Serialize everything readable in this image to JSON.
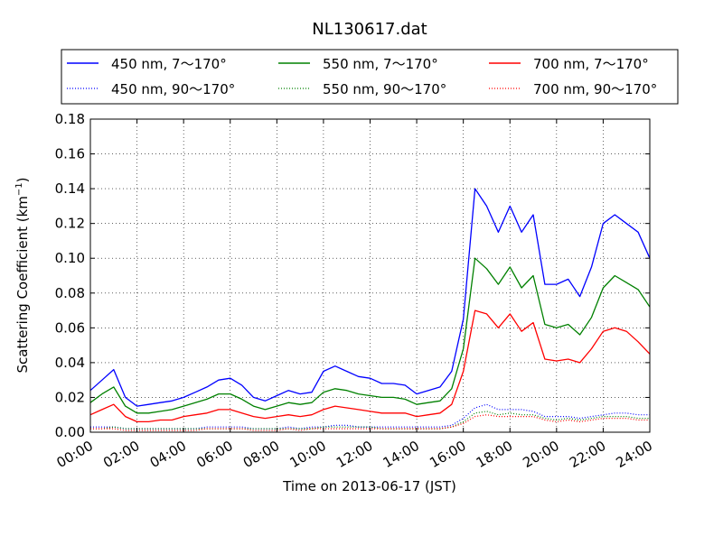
{
  "chart_data": {
    "type": "line",
    "title": "NL130617.dat",
    "xlabel": "Time on 2013-06-17 (JST)",
    "ylabel": "Scattering Coefficient (km",
    "ylabel_sup": "−1",
    "ylabel_tail": ")",
    "xlim": [
      0,
      24
    ],
    "ylim": [
      0,
      0.18
    ],
    "grid": true,
    "legend_position": "top",
    "x_ticks": [
      {
        "value": 0,
        "label": "00:00"
      },
      {
        "value": 2,
        "label": "02:00"
      },
      {
        "value": 4,
        "label": "04:00"
      },
      {
        "value": 6,
        "label": "06:00"
      },
      {
        "value": 8,
        "label": "08:00"
      },
      {
        "value": 10,
        "label": "10:00"
      },
      {
        "value": 12,
        "label": "12:00"
      },
      {
        "value": 14,
        "label": "14:00"
      },
      {
        "value": 16,
        "label": "16:00"
      },
      {
        "value": 18,
        "label": "18:00"
      },
      {
        "value": 20,
        "label": "20:00"
      },
      {
        "value": 22,
        "label": "22:00"
      },
      {
        "value": 24,
        "label": "24:00"
      }
    ],
    "y_ticks": [
      {
        "value": 0,
        "label": "0.00"
      },
      {
        "value": 0.02,
        "label": "0.02"
      },
      {
        "value": 0.04,
        "label": "0.04"
      },
      {
        "value": 0.06,
        "label": "0.06"
      },
      {
        "value": 0.08,
        "label": "0.08"
      },
      {
        "value": 0.1,
        "label": "0.10"
      },
      {
        "value": 0.12,
        "label": "0.12"
      },
      {
        "value": 0.14,
        "label": "0.14"
      },
      {
        "value": 0.16,
        "label": "0.16"
      },
      {
        "value": 0.18,
        "label": "0.18"
      }
    ],
    "x": [
      0,
      0.5,
      1,
      1.5,
      2,
      2.5,
      3,
      3.5,
      4,
      4.5,
      5,
      5.5,
      6,
      6.5,
      7,
      7.5,
      8,
      8.5,
      9,
      9.5,
      10,
      10.5,
      11,
      11.5,
      12,
      12.5,
      13,
      13.5,
      14,
      14.5,
      15,
      15.5,
      16,
      16.5,
      17,
      17.5,
      18,
      18.5,
      19,
      19.5,
      20,
      20.5,
      21,
      21.5,
      22,
      22.5,
      23,
      23.5,
      24
    ],
    "series": [
      {
        "name": "450 nm, 7～170°",
        "color": "#0000ff",
        "style": "solid",
        "values": [
          0.024,
          0.03,
          0.036,
          0.02,
          0.015,
          0.016,
          0.017,
          0.018,
          0.02,
          0.023,
          0.026,
          0.03,
          0.031,
          0.027,
          0.02,
          0.018,
          0.021,
          0.024,
          0.022,
          0.023,
          0.035,
          0.038,
          0.035,
          0.032,
          0.031,
          0.028,
          0.028,
          0.027,
          0.022,
          0.024,
          0.026,
          0.035,
          0.065,
          0.14,
          0.13,
          0.115,
          0.13,
          0.115,
          0.125,
          0.085,
          0.085,
          0.088,
          0.078,
          0.095,
          0.12,
          0.125,
          0.12,
          0.115,
          0.1
        ]
      },
      {
        "name": "450 nm, 90～170°",
        "color": "#0000ff",
        "style": "dotted",
        "values": [
          0.003,
          0.003,
          0.003,
          0.002,
          0.002,
          0.002,
          0.002,
          0.002,
          0.002,
          0.002,
          0.003,
          0.003,
          0.003,
          0.003,
          0.002,
          0.002,
          0.002,
          0.003,
          0.002,
          0.003,
          0.003,
          0.004,
          0.004,
          0.003,
          0.003,
          0.003,
          0.003,
          0.003,
          0.003,
          0.003,
          0.003,
          0.004,
          0.008,
          0.014,
          0.016,
          0.013,
          0.013,
          0.013,
          0.012,
          0.009,
          0.009,
          0.009,
          0.008,
          0.009,
          0.01,
          0.011,
          0.011,
          0.01,
          0.01
        ]
      },
      {
        "name": "550 nm, 7～170°",
        "color": "#008000",
        "style": "solid",
        "values": [
          0.017,
          0.022,
          0.026,
          0.015,
          0.011,
          0.011,
          0.012,
          0.013,
          0.015,
          0.017,
          0.019,
          0.022,
          0.022,
          0.019,
          0.015,
          0.013,
          0.015,
          0.017,
          0.016,
          0.017,
          0.023,
          0.025,
          0.024,
          0.022,
          0.021,
          0.02,
          0.02,
          0.019,
          0.016,
          0.017,
          0.018,
          0.025,
          0.048,
          0.1,
          0.094,
          0.085,
          0.095,
          0.083,
          0.09,
          0.062,
          0.06,
          0.062,
          0.056,
          0.066,
          0.083,
          0.09,
          0.086,
          0.082,
          0.072
        ]
      },
      {
        "name": "550 nm, 90～170°",
        "color": "#008000",
        "style": "dotted",
        "values": [
          0.002,
          0.002,
          0.003,
          0.002,
          0.002,
          0.002,
          0.002,
          0.002,
          0.002,
          0.002,
          0.002,
          0.002,
          0.002,
          0.002,
          0.002,
          0.002,
          0.002,
          0.002,
          0.002,
          0.002,
          0.003,
          0.003,
          0.003,
          0.003,
          0.003,
          0.002,
          0.002,
          0.002,
          0.002,
          0.002,
          0.002,
          0.003,
          0.006,
          0.011,
          0.012,
          0.01,
          0.011,
          0.01,
          0.01,
          0.008,
          0.007,
          0.008,
          0.007,
          0.008,
          0.009,
          0.009,
          0.009,
          0.008,
          0.008
        ]
      },
      {
        "name": "700 nm, 7～170°",
        "color": "#ff0000",
        "style": "solid",
        "values": [
          0.01,
          0.013,
          0.016,
          0.009,
          0.006,
          0.006,
          0.007,
          0.007,
          0.009,
          0.01,
          0.011,
          0.013,
          0.013,
          0.011,
          0.009,
          0.008,
          0.009,
          0.01,
          0.009,
          0.01,
          0.013,
          0.015,
          0.014,
          0.013,
          0.012,
          0.011,
          0.011,
          0.011,
          0.009,
          0.01,
          0.011,
          0.016,
          0.035,
          0.07,
          0.068,
          0.06,
          0.068,
          0.058,
          0.063,
          0.042,
          0.041,
          0.042,
          0.04,
          0.048,
          0.058,
          0.06,
          0.058,
          0.052,
          0.045
        ]
      },
      {
        "name": "700 nm, 90～170°",
        "color": "#ff0000",
        "style": "dotted",
        "values": [
          0.002,
          0.002,
          0.002,
          0.001,
          0.001,
          0.001,
          0.001,
          0.001,
          0.001,
          0.001,
          0.002,
          0.002,
          0.002,
          0.002,
          0.001,
          0.001,
          0.001,
          0.002,
          0.001,
          0.002,
          0.002,
          0.002,
          0.002,
          0.002,
          0.002,
          0.002,
          0.002,
          0.002,
          0.002,
          0.002,
          0.002,
          0.003,
          0.005,
          0.009,
          0.01,
          0.009,
          0.009,
          0.009,
          0.009,
          0.007,
          0.006,
          0.007,
          0.006,
          0.007,
          0.008,
          0.008,
          0.008,
          0.007,
          0.007
        ]
      }
    ]
  }
}
